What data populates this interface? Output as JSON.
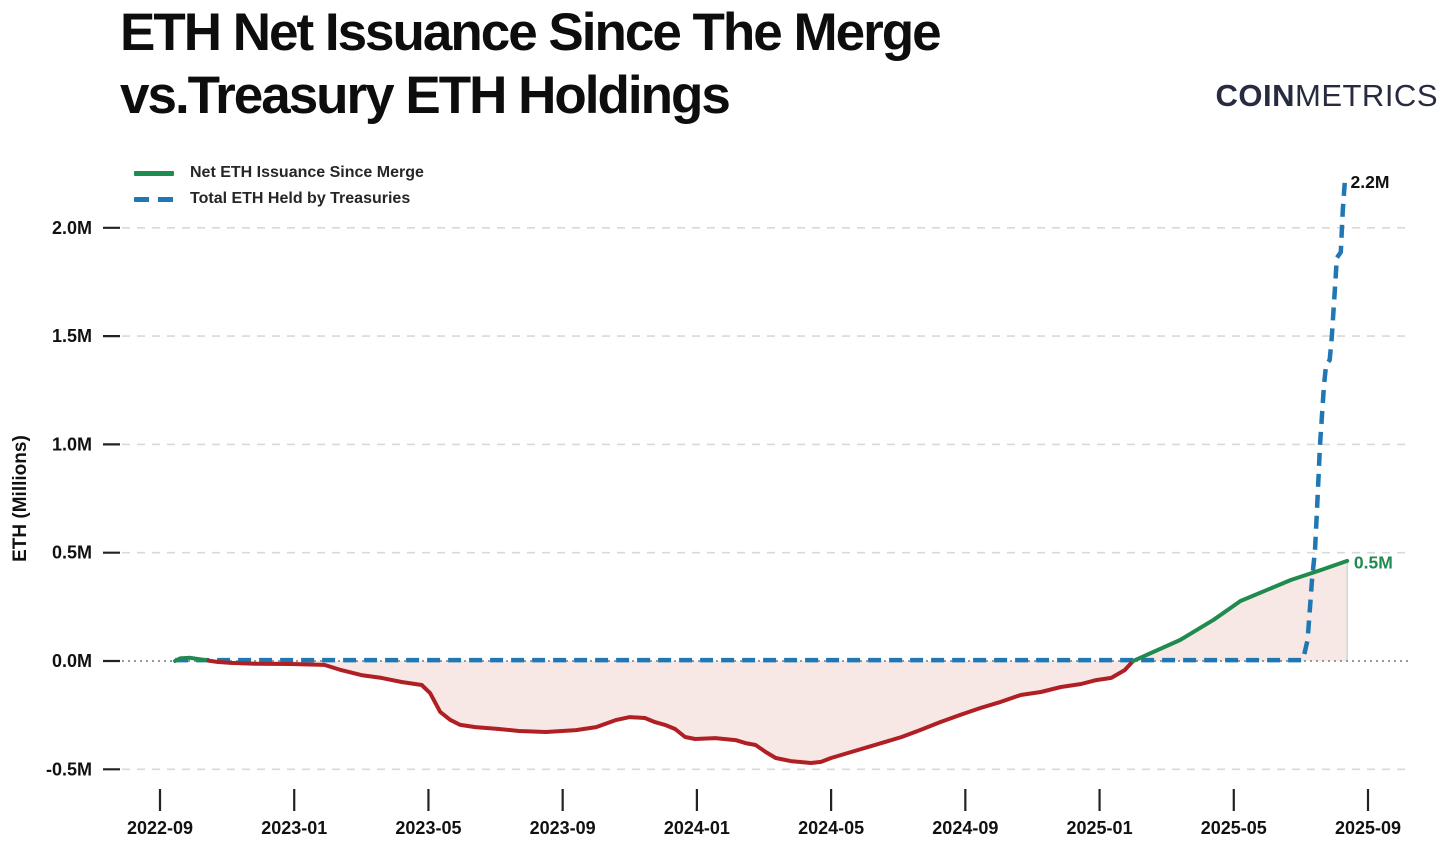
{
  "header": {
    "title_line1": "ETH Net Issuance Since The Merge",
    "title_line2": "vs.Treasury ETH Holdings",
    "logo_bold": "COIN",
    "logo_light": "METRICS"
  },
  "legend": {
    "items": [
      {
        "label": "Net ETH Issuance Since Merge",
        "style": "solid",
        "color": "#1f8b4e"
      },
      {
        "label": "Total ETH Held by Treasuries",
        "style": "dashed",
        "color": "#1f77b4"
      }
    ]
  },
  "chart_data": {
    "type": "line",
    "title": "ETH Net Issuance Since The Merge vs.Treasury ETH Holdings",
    "xlabel": "",
    "ylabel": "ETH (Millions)",
    "x_unit": "months since 2022-09",
    "y_unit": "millions of ETH",
    "ylim": [
      -0.62,
      2.35
    ],
    "grid": true,
    "legend_position": "top-left",
    "x_ticks": [
      {
        "m": 0,
        "label": "2022-09"
      },
      {
        "m": 4,
        "label": "2023-01"
      },
      {
        "m": 8,
        "label": "2023-05"
      },
      {
        "m": 12,
        "label": "2023-09"
      },
      {
        "m": 16,
        "label": "2024-01"
      },
      {
        "m": 20,
        "label": "2024-05"
      },
      {
        "m": 24,
        "label": "2024-09"
      },
      {
        "m": 28,
        "label": "2025-01"
      },
      {
        "m": 32,
        "label": "2025-05"
      },
      {
        "m": 36,
        "label": "2025-09"
      }
    ],
    "y_ticks": [
      {
        "v": -0.5,
        "label": "-0.5M"
      },
      {
        "v": 0.0,
        "label": "0.0M"
      },
      {
        "v": 0.5,
        "label": "0.5M"
      },
      {
        "v": 1.0,
        "label": "1.0M"
      },
      {
        "v": 1.5,
        "label": "1.5M"
      },
      {
        "v": 2.0,
        "label": "2.0M"
      }
    ],
    "series": [
      {
        "name": "Net ETH Issuance Since Merge",
        "style": "solid",
        "color_positive": "#1f8b4e",
        "color_negative": "#b01f24",
        "fill_positive": "#e9f2ec",
        "fill_negative": "#f7e8e6",
        "points": [
          [
            0.45,
            0.0
          ],
          [
            0.6,
            0.012
          ],
          [
            0.9,
            0.015
          ],
          [
            1.2,
            0.008
          ],
          [
            1.45,
            0.002
          ],
          [
            1.7,
            -0.004
          ],
          [
            2.1,
            -0.009
          ],
          [
            2.9,
            -0.013
          ],
          [
            3.9,
            -0.014
          ],
          [
            4.9,
            -0.018
          ],
          [
            5.4,
            -0.042
          ],
          [
            6.0,
            -0.065
          ],
          [
            6.6,
            -0.078
          ],
          [
            7.2,
            -0.097
          ],
          [
            7.8,
            -0.111
          ],
          [
            8.05,
            -0.148
          ],
          [
            8.35,
            -0.235
          ],
          [
            8.65,
            -0.272
          ],
          [
            8.95,
            -0.295
          ],
          [
            9.4,
            -0.305
          ],
          [
            10.1,
            -0.314
          ],
          [
            10.7,
            -0.323
          ],
          [
            11.5,
            -0.328
          ],
          [
            12.4,
            -0.319
          ],
          [
            13.0,
            -0.305
          ],
          [
            13.6,
            -0.272
          ],
          [
            14.0,
            -0.259
          ],
          [
            14.45,
            -0.263
          ],
          [
            14.75,
            -0.282
          ],
          [
            15.05,
            -0.295
          ],
          [
            15.35,
            -0.314
          ],
          [
            15.65,
            -0.351
          ],
          [
            15.95,
            -0.36
          ],
          [
            16.55,
            -0.356
          ],
          [
            17.15,
            -0.365
          ],
          [
            17.45,
            -0.379
          ],
          [
            17.75,
            -0.388
          ],
          [
            18.05,
            -0.42
          ],
          [
            18.35,
            -0.448
          ],
          [
            18.8,
            -0.462
          ],
          [
            19.4,
            -0.471
          ],
          [
            19.7,
            -0.466
          ],
          [
            20.0,
            -0.448
          ],
          [
            20.6,
            -0.42
          ],
          [
            21.5,
            -0.379
          ],
          [
            22.1,
            -0.351
          ],
          [
            22.65,
            -0.319
          ],
          [
            23.25,
            -0.282
          ],
          [
            23.85,
            -0.249
          ],
          [
            24.45,
            -0.217
          ],
          [
            25.05,
            -0.189
          ],
          [
            25.65,
            -0.157
          ],
          [
            26.25,
            -0.143
          ],
          [
            26.85,
            -0.12
          ],
          [
            27.45,
            -0.106
          ],
          [
            27.9,
            -0.088
          ],
          [
            28.35,
            -0.078
          ],
          [
            28.75,
            -0.042
          ],
          [
            29.0,
            0.0
          ],
          [
            30.4,
            0.097
          ],
          [
            31.4,
            0.19
          ],
          [
            32.2,
            0.277
          ],
          [
            33.7,
            0.374
          ],
          [
            34.6,
            0.42
          ],
          [
            35.38,
            0.462
          ]
        ]
      },
      {
        "name": "Total ETH Held by Treasuries",
        "style": "dashed",
        "color": "#1f77b4",
        "points": [
          [
            0.45,
            0.004
          ],
          [
            34.06,
            0.004
          ],
          [
            34.2,
            0.097
          ],
          [
            34.33,
            0.374
          ],
          [
            34.42,
            0.512
          ],
          [
            34.48,
            0.697
          ],
          [
            34.57,
            0.997
          ],
          [
            34.69,
            1.274
          ],
          [
            34.75,
            1.367
          ],
          [
            34.86,
            1.39
          ],
          [
            34.92,
            1.496
          ],
          [
            35.04,
            1.782
          ],
          [
            35.07,
            1.861
          ],
          [
            35.19,
            1.888
          ],
          [
            35.25,
            2.082
          ],
          [
            35.31,
            2.212
          ]
        ]
      }
    ],
    "annotations": [
      {
        "text": "2.2M",
        "m": 35.42,
        "v": 2.212,
        "color": "#111111",
        "weight": "600"
      },
      {
        "text": "0.5M",
        "m": 35.52,
        "v": 0.455,
        "color": "#1f8b4e",
        "weight": "700"
      }
    ],
    "colors": {
      "grid": "#d9d9d9",
      "zero_line": "#8c8c8c",
      "tick": "#222222",
      "tick_label": "#111111",
      "axis_title": "#111111",
      "fill_edge": "#c9ddd2"
    }
  }
}
